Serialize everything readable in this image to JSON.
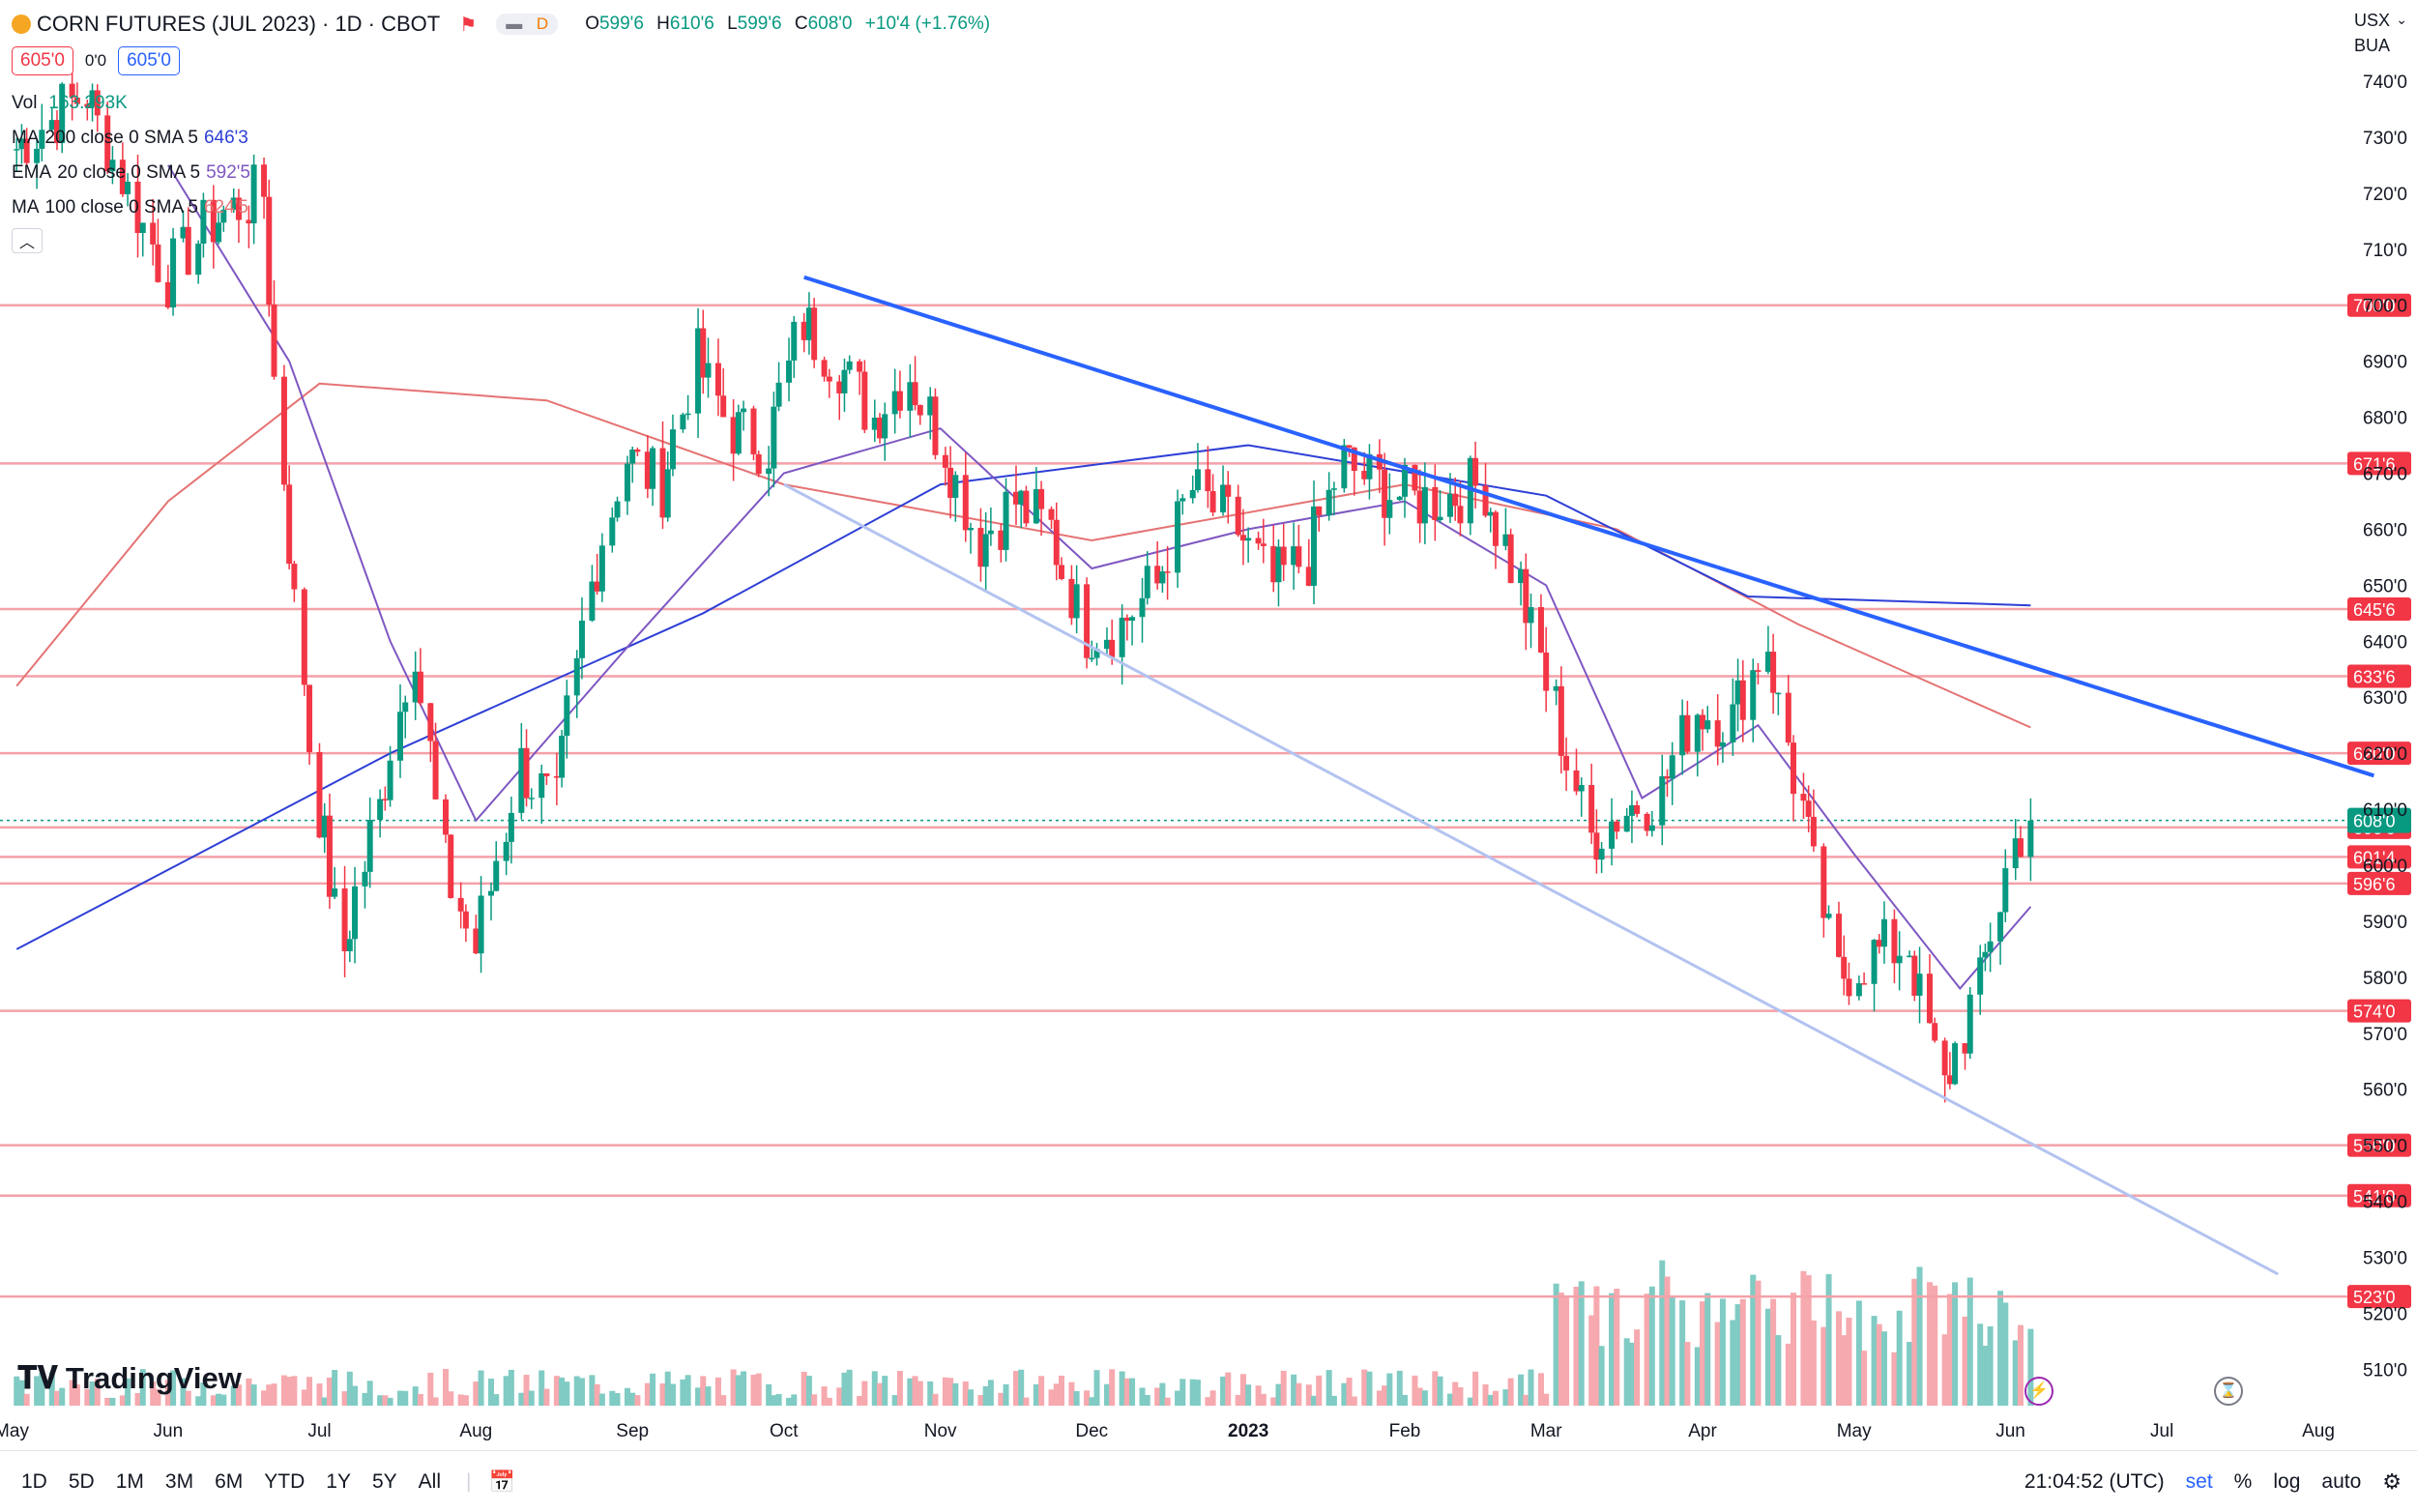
{
  "header": {
    "symbol_title": "CORN FUTURES (JUL 2023) · 1D · CBOT",
    "mode_badge": "D",
    "ohlc": {
      "o_label": "O",
      "o_value": "599'6",
      "h_label": "H",
      "h_value": "610'6",
      "l_label": "L",
      "l_value": "599'6",
      "c_label": "C",
      "c_value": "608'0",
      "change": "+10'4 (+1.76%)"
    },
    "sell_price": "605'0",
    "spread": "0'0",
    "buy_price": "605'0"
  },
  "indicators": [
    {
      "label": "Vol",
      "params": "",
      "value": "163.293K",
      "color": "#089981"
    },
    {
      "label": "MA",
      "params": "200 close 0 SMA 5",
      "value": "646'3",
      "color": "#2e3fd6"
    },
    {
      "label": "EMA",
      "params": "20 close 0 SMA 5",
      "value": "592'5",
      "color": "#7e57c2"
    },
    {
      "label": "MA",
      "params": "100 close 0 SMA 5",
      "value": "624'5",
      "color": "#e57373"
    }
  ],
  "currency": "USX",
  "currency_sub": "BUA",
  "branding": "TradingView",
  "bottom_bar": {
    "timeframes": [
      "1D",
      "5D",
      "1M",
      "3M",
      "6M",
      "YTD",
      "1Y",
      "5Y",
      "All"
    ],
    "clock": "21:04:52 (UTC)",
    "set_label": "set",
    "pct_label": "%",
    "log_label": "log",
    "auto_label": "auto"
  },
  "chart_data": {
    "type": "candlestick",
    "title": "CORN FUTURES (JUL 2023) · 1D · CBOT",
    "y_axis_ticks": [
      "740'0",
      "730'0",
      "720'0",
      "710'0",
      "700'0",
      "690'0",
      "680'0",
      "670'0",
      "660'0",
      "650'0",
      "640'0",
      "630'0",
      "620'0",
      "610'0",
      "600'0",
      "590'0",
      "580'0",
      "570'0",
      "560'0",
      "550'0",
      "540'0",
      "530'0",
      "520'0",
      "510'0"
    ],
    "ylim": [
      505,
      745
    ],
    "x_axis_months": [
      "May",
      "Jun",
      "Jul",
      "Aug",
      "Sep",
      "Oct",
      "Nov",
      "Dec",
      "2023",
      "Feb",
      "Mar",
      "Apr",
      "May",
      "Jun",
      "Jul",
      "Aug"
    ],
    "horizontal_levels": [
      {
        "label": "700'0",
        "value": 700.0
      },
      {
        "label": "671'6",
        "value": 671.75
      },
      {
        "label": "645'6",
        "value": 645.75
      },
      {
        "label": "633'6",
        "value": 633.75
      },
      {
        "label": "620'0",
        "value": 620.0
      },
      {
        "label": "606'6",
        "value": 606.75
      },
      {
        "label": "601'4",
        "value": 601.5
      },
      {
        "label": "596'6",
        "value": 596.75
      },
      {
        "label": "574'0",
        "value": 574.0
      },
      {
        "label": "550'0",
        "value": 550.0
      },
      {
        "label": "541'0",
        "value": 541.0
      },
      {
        "label": "523'0",
        "value": 523.0
      }
    ],
    "last_price": {
      "label": "608'0",
      "value": 608.0
    },
    "trendlines": [
      {
        "name": "down",
        "from": [
          "2022-10-05",
          705
        ],
        "to": [
          "2023-08-12",
          616
        ],
        "color": "#2962ff"
      },
      {
        "name": "lower",
        "from": [
          "2022-10-01",
          668
        ],
        "to": [
          "2023-07-24",
          527
        ],
        "color": "#b3c3f0"
      }
    ],
    "daily_closes": [
      {
        "date": "2022-05-02",
        "close": 728
      },
      {
        "date": "2022-05-16",
        "close": 738
      },
      {
        "date": "2022-06-01",
        "close": 705
      },
      {
        "date": "2022-06-10",
        "close": 715
      },
      {
        "date": "2022-06-20",
        "close": 720
      },
      {
        "date": "2022-06-24",
        "close": 670
      },
      {
        "date": "2022-07-01",
        "close": 610
      },
      {
        "date": "2022-07-06",
        "close": 585
      },
      {
        "date": "2022-07-13",
        "close": 610
      },
      {
        "date": "2022-07-20",
        "close": 640
      },
      {
        "date": "2022-07-26",
        "close": 600
      },
      {
        "date": "2022-08-01",
        "close": 585
      },
      {
        "date": "2022-08-10",
        "close": 618
      },
      {
        "date": "2022-08-17",
        "close": 610
      },
      {
        "date": "2022-08-24",
        "close": 650
      },
      {
        "date": "2022-08-31",
        "close": 673
      },
      {
        "date": "2022-09-07",
        "close": 668
      },
      {
        "date": "2022-09-14",
        "close": 690
      },
      {
        "date": "2022-09-21",
        "close": 678
      },
      {
        "date": "2022-09-28",
        "close": 675
      },
      {
        "date": "2022-10-05",
        "close": 697
      },
      {
        "date": "2022-10-12",
        "close": 690
      },
      {
        "date": "2022-10-19",
        "close": 680
      },
      {
        "date": "2022-10-26",
        "close": 688
      },
      {
        "date": "2022-11-02",
        "close": 675
      },
      {
        "date": "2022-11-09",
        "close": 658
      },
      {
        "date": "2022-11-16",
        "close": 665
      },
      {
        "date": "2022-11-23",
        "close": 660
      },
      {
        "date": "2022-11-30",
        "close": 642
      },
      {
        "date": "2022-12-07",
        "close": 643
      },
      {
        "date": "2022-12-14",
        "close": 650
      },
      {
        "date": "2022-12-21",
        "close": 667
      },
      {
        "date": "2022-12-30",
        "close": 660
      },
      {
        "date": "2023-01-06",
        "close": 650
      },
      {
        "date": "2023-01-13",
        "close": 655
      },
      {
        "date": "2023-01-20",
        "close": 672
      },
      {
        "date": "2023-01-27",
        "close": 668
      },
      {
        "date": "2023-02-03",
        "close": 665
      },
      {
        "date": "2023-02-10",
        "close": 666
      },
      {
        "date": "2023-02-17",
        "close": 668
      },
      {
        "date": "2023-02-24",
        "close": 650
      },
      {
        "date": "2023-03-03",
        "close": 628
      },
      {
        "date": "2023-03-10",
        "close": 605
      },
      {
        "date": "2023-03-17",
        "close": 610
      },
      {
        "date": "2023-03-24",
        "close": 613
      },
      {
        "date": "2023-03-31",
        "close": 628
      },
      {
        "date": "2023-04-07",
        "close": 626
      },
      {
        "date": "2023-04-14",
        "close": 640
      },
      {
        "date": "2023-04-21",
        "close": 610
      },
      {
        "date": "2023-04-28",
        "close": 580
      },
      {
        "date": "2023-05-05",
        "close": 584
      },
      {
        "date": "2023-05-12",
        "close": 586
      },
      {
        "date": "2023-05-19",
        "close": 560
      },
      {
        "date": "2023-05-26",
        "close": 578
      },
      {
        "date": "2023-06-02",
        "close": 604
      },
      {
        "date": "2023-06-05",
        "close": 608
      }
    ],
    "ma200_approx": [
      {
        "date": "2022-05-02",
        "value": 585
      },
      {
        "date": "2022-07-15",
        "value": 620
      },
      {
        "date": "2022-09-15",
        "value": 645
      },
      {
        "date": "2022-11-01",
        "value": 668
      },
      {
        "date": "2023-01-01",
        "value": 675
      },
      {
        "date": "2023-03-01",
        "value": 666
      },
      {
        "date": "2023-04-10",
        "value": 648
      },
      {
        "date": "2023-06-05",
        "value": 646.4
      }
    ],
    "ma100_approx": [
      {
        "date": "2022-05-02",
        "value": 632
      },
      {
        "date": "2022-06-01",
        "value": 665
      },
      {
        "date": "2022-07-01",
        "value": 686
      },
      {
        "date": "2022-08-15",
        "value": 683
      },
      {
        "date": "2022-10-01",
        "value": 668
      },
      {
        "date": "2022-12-01",
        "value": 658
      },
      {
        "date": "2023-02-01",
        "value": 668
      },
      {
        "date": "2023-03-15",
        "value": 660
      },
      {
        "date": "2023-04-20",
        "value": 643
      },
      {
        "date": "2023-06-05",
        "value": 624.6
      }
    ],
    "ema20_approx": [
      {
        "date": "2022-06-01",
        "value": 725
      },
      {
        "date": "2022-06-25",
        "value": 690
      },
      {
        "date": "2022-07-15",
        "value": 640
      },
      {
        "date": "2022-08-01",
        "value": 608
      },
      {
        "date": "2022-09-01",
        "value": 640
      },
      {
        "date": "2022-10-01",
        "value": 670
      },
      {
        "date": "2022-11-01",
        "value": 678
      },
      {
        "date": "2022-12-01",
        "value": 653
      },
      {
        "date": "2023-01-01",
        "value": 660
      },
      {
        "date": "2023-02-01",
        "value": 665
      },
      {
        "date": "2023-03-01",
        "value": 650
      },
      {
        "date": "2023-03-20",
        "value": 612
      },
      {
        "date": "2023-04-12",
        "value": 625
      },
      {
        "date": "2023-05-01",
        "value": 602
      },
      {
        "date": "2023-05-22",
        "value": 578
      },
      {
        "date": "2023-06-05",
        "value": 592.6
      }
    ]
  }
}
